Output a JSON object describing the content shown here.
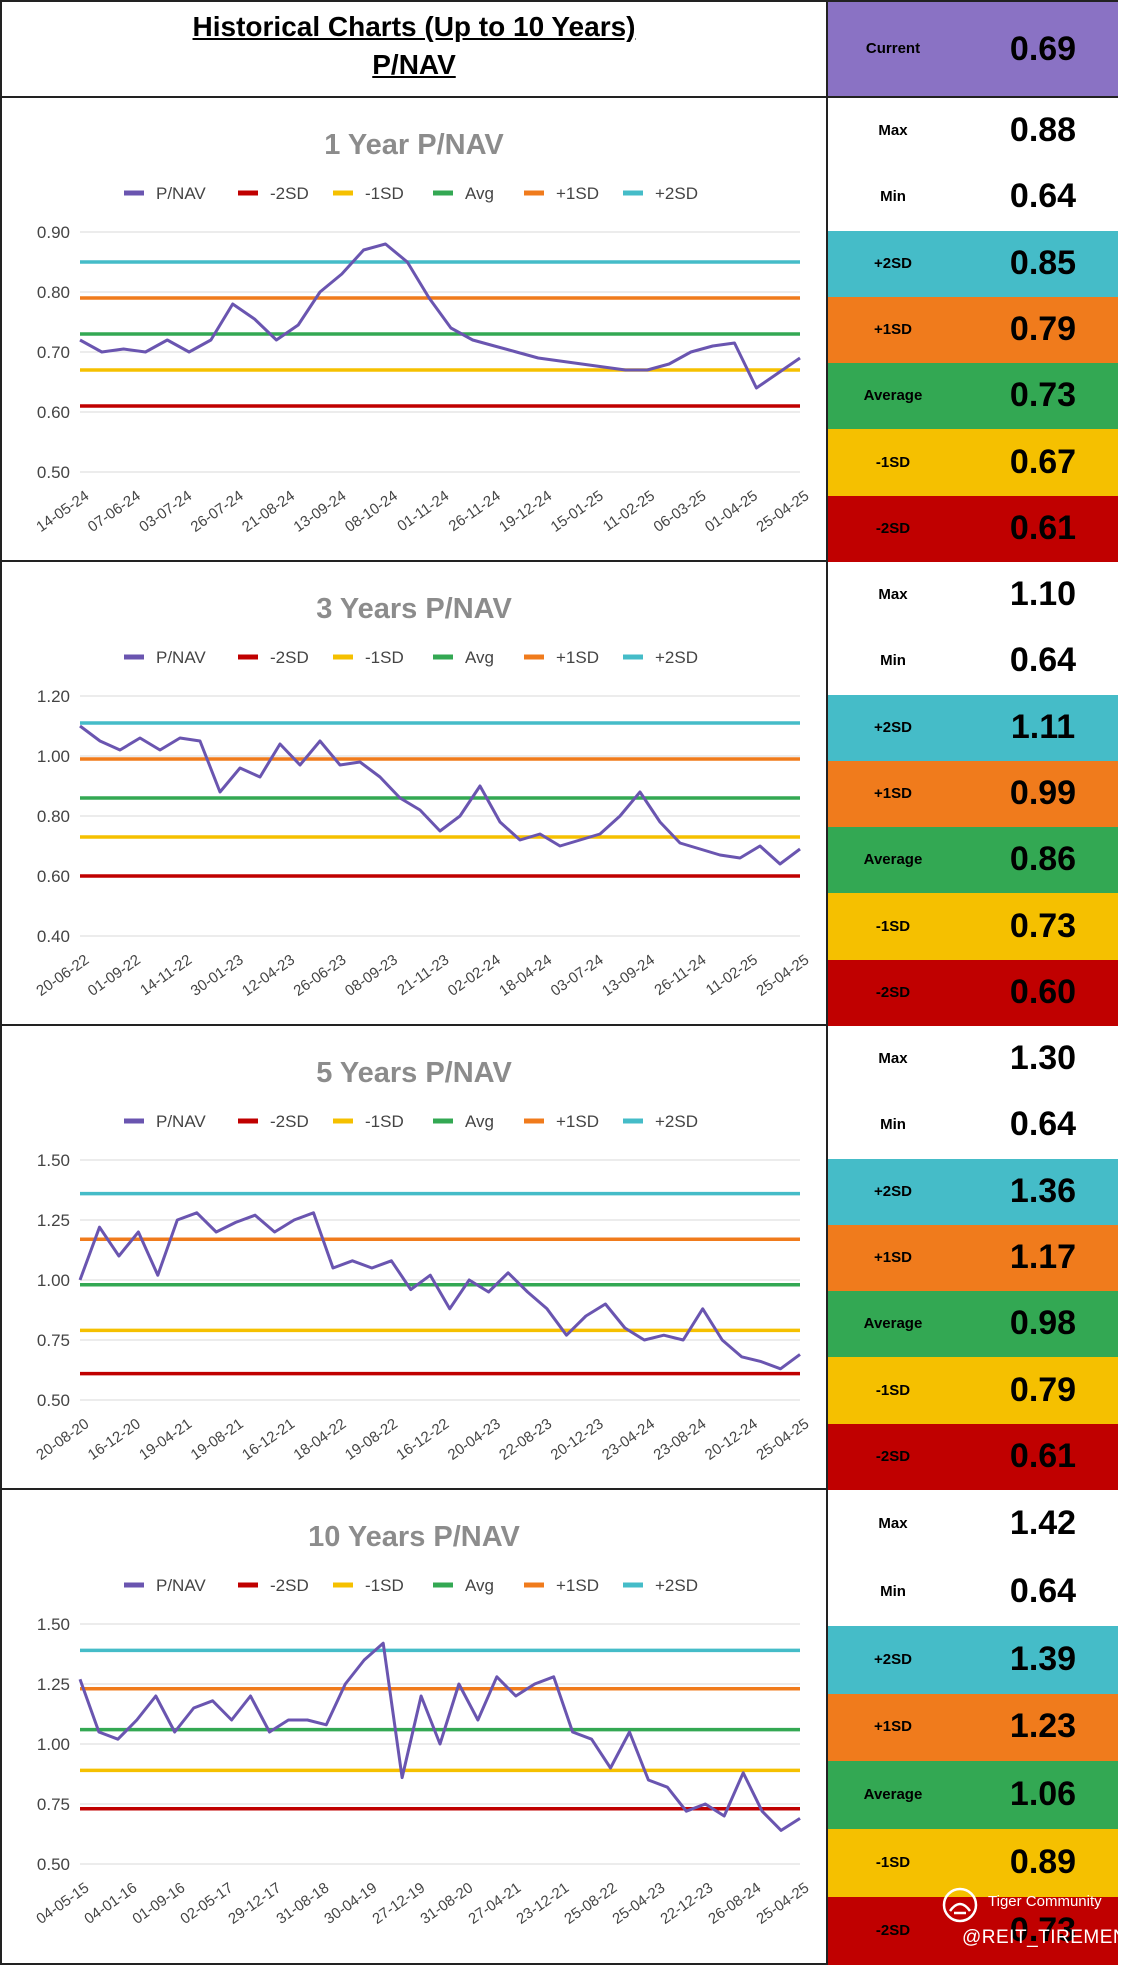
{
  "header": {
    "title": "Historical Charts (Up to 10 Years)",
    "subtitle": "P/NAV",
    "current_label": "Current",
    "current_value": "0.69"
  },
  "colors": {
    "pnav": "#6a55b0",
    "minus2sd": "#c00000",
    "minus1sd": "#f5c000",
    "avg": "#33a853",
    "plus1sd": "#f07b1c",
    "plus2sd": "#45bcc8",
    "current_bg": "#8a72c4",
    "white": "#ffffff"
  },
  "legend": [
    "P/NAV",
    "-2SD",
    "-1SD",
    "Avg",
    "+1SD",
    "+2SD"
  ],
  "stat_labels": [
    "Max",
    "Min",
    "+2SD",
    "+1SD",
    "Average",
    "-1SD",
    "-2SD"
  ],
  "sections": [
    {
      "id": "1y",
      "stats": [
        "0.88",
        "0.64",
        "0.85",
        "0.79",
        "0.73",
        "0.67",
        "0.61"
      ],
      "chart_data": {
        "type": "line",
        "title": "1 Year P/NAV",
        "ylim": [
          0.5,
          0.9
        ],
        "yticks": [
          "0.90",
          "0.80",
          "0.70",
          "0.60",
          "0.50"
        ],
        "ytick_values": [
          0.9,
          0.8,
          0.7,
          0.6,
          0.5
        ],
        "xticks": [
          "14-05-24",
          "07-06-24",
          "03-07-24",
          "26-07-24",
          "21-08-24",
          "13-09-24",
          "08-10-24",
          "01-11-24",
          "26-11-24",
          "19-12-24",
          "15-01-25",
          "11-02-25",
          "06-03-25",
          "01-04-25",
          "25-04-25"
        ],
        "bands": {
          "minus2sd": 0.61,
          "minus1sd": 0.67,
          "avg": 0.73,
          "plus1sd": 0.79,
          "plus2sd": 0.85
        },
        "series": [
          {
            "name": "P/NAV",
            "values": [
              0.72,
              0.7,
              0.705,
              0.7,
              0.72,
              0.7,
              0.72,
              0.78,
              0.755,
              0.72,
              0.745,
              0.8,
              0.83,
              0.87,
              0.88,
              0.85,
              0.79,
              0.74,
              0.72,
              0.71,
              0.7,
              0.69,
              0.685,
              0.68,
              0.675,
              0.67,
              0.67,
              0.68,
              0.7,
              0.71,
              0.715,
              0.64,
              0.665,
              0.69
            ]
          }
        ]
      }
    },
    {
      "id": "3y",
      "stats": [
        "1.10",
        "0.64",
        "1.11",
        "0.99",
        "0.86",
        "0.73",
        "0.60"
      ],
      "chart_data": {
        "type": "line",
        "title": "3 Years P/NAV",
        "ylim": [
          0.4,
          1.2
        ],
        "yticks": [
          "1.20",
          "1.00",
          "0.80",
          "0.60",
          "0.40"
        ],
        "ytick_values": [
          1.2,
          1.0,
          0.8,
          0.6,
          0.4
        ],
        "xticks": [
          "20-06-22",
          "01-09-22",
          "14-11-22",
          "30-01-23",
          "12-04-23",
          "26-06-23",
          "08-09-23",
          "21-11-23",
          "02-02-24",
          "18-04-24",
          "03-07-24",
          "13-09-24",
          "26-11-24",
          "11-02-25",
          "25-04-25"
        ],
        "bands": {
          "minus2sd": 0.6,
          "minus1sd": 0.73,
          "avg": 0.86,
          "plus1sd": 0.99,
          "plus2sd": 1.11
        },
        "series": [
          {
            "name": "P/NAV",
            "values": [
              1.1,
              1.05,
              1.02,
              1.06,
              1.02,
              1.06,
              1.05,
              0.88,
              0.96,
              0.93,
              1.04,
              0.97,
              1.05,
              0.97,
              0.98,
              0.93,
              0.86,
              0.82,
              0.75,
              0.8,
              0.9,
              0.78,
              0.72,
              0.74,
              0.7,
              0.72,
              0.74,
              0.8,
              0.88,
              0.78,
              0.71,
              0.69,
              0.67,
              0.66,
              0.7,
              0.64,
              0.69
            ]
          }
        ]
      }
    },
    {
      "id": "5y",
      "stats": [
        "1.30",
        "0.64",
        "1.36",
        "1.17",
        "0.98",
        "0.79",
        "0.61"
      ],
      "chart_data": {
        "type": "line",
        "title": "5 Years P/NAV",
        "ylim": [
          0.5,
          1.5
        ],
        "yticks": [
          "1.50",
          "1.25",
          "1.00",
          "0.75",
          "0.50"
        ],
        "ytick_values": [
          1.5,
          1.25,
          1.0,
          0.75,
          0.5
        ],
        "xticks": [
          "20-08-20",
          "16-12-20",
          "19-04-21",
          "19-08-21",
          "16-12-21",
          "18-04-22",
          "19-08-22",
          "16-12-22",
          "20-04-23",
          "22-08-23",
          "20-12-23",
          "23-04-24",
          "23-08-24",
          "20-12-24",
          "25-04-25"
        ],
        "bands": {
          "minus2sd": 0.61,
          "minus1sd": 0.79,
          "avg": 0.98,
          "plus1sd": 1.17,
          "plus2sd": 1.36
        },
        "series": [
          {
            "name": "P/NAV",
            "values": [
              1.0,
              1.22,
              1.1,
              1.2,
              1.02,
              1.25,
              1.28,
              1.2,
              1.24,
              1.27,
              1.2,
              1.25,
              1.28,
              1.05,
              1.08,
              1.05,
              1.08,
              0.96,
              1.02,
              0.88,
              1.0,
              0.95,
              1.03,
              0.95,
              0.88,
              0.77,
              0.85,
              0.9,
              0.8,
              0.75,
              0.77,
              0.75,
              0.88,
              0.75,
              0.68,
              0.66,
              0.63,
              0.69
            ]
          }
        ]
      }
    },
    {
      "id": "10y",
      "stats": [
        "1.42",
        "0.64",
        "1.39",
        "1.23",
        "1.06",
        "0.89",
        "0.73"
      ],
      "chart_data": {
        "type": "line",
        "title": "10 Years P/NAV",
        "ylim": [
          0.5,
          1.5
        ],
        "yticks": [
          "1.50",
          "1.25",
          "1.00",
          "0.75",
          "0.50"
        ],
        "ytick_values": [
          1.5,
          1.25,
          1.0,
          0.75,
          0.5
        ],
        "xticks": [
          "04-05-15",
          "04-01-16",
          "01-09-16",
          "02-05-17",
          "29-12-17",
          "31-08-18",
          "30-04-19",
          "27-12-19",
          "31-08-20",
          "27-04-21",
          "23-12-21",
          "25-08-22",
          "25-04-23",
          "22-12-23",
          "26-08-24",
          "25-04-25"
        ],
        "bands": {
          "minus2sd": 0.73,
          "minus1sd": 0.89,
          "avg": 1.06,
          "plus1sd": 1.23,
          "plus2sd": 1.39
        },
        "series": [
          {
            "name": "P/NAV",
            "values": [
              1.27,
              1.05,
              1.02,
              1.1,
              1.2,
              1.05,
              1.15,
              1.18,
              1.1,
              1.2,
              1.05,
              1.1,
              1.1,
              1.08,
              1.25,
              1.35,
              1.42,
              0.86,
              1.2,
              1.0,
              1.25,
              1.1,
              1.28,
              1.2,
              1.25,
              1.28,
              1.05,
              1.02,
              0.9,
              1.05,
              0.85,
              0.82,
              0.72,
              0.75,
              0.7,
              0.88,
              0.72,
              0.64,
              0.69
            ]
          }
        ]
      }
    }
  ],
  "watermark": {
    "brand": "Tiger Community",
    "handle": "@REIT_TIREMENT"
  }
}
